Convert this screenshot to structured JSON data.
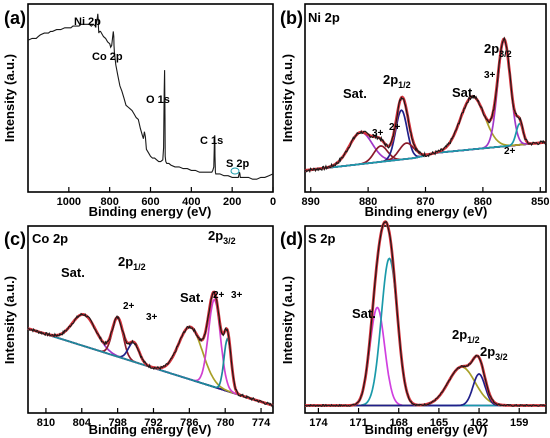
{
  "colors": {
    "data": "#1a1a1a",
    "envelope": "#d2313a",
    "background": "#1f2a8a",
    "sat_purple": "#a038c8",
    "sat_olive": "#a8a028",
    "ni3": "#8a1a2a",
    "ni2": "#20208a",
    "co2": "#d040d0",
    "co3": "#1a8a9a",
    "s_sat": "#d040e0",
    "s_main": "#1a9aaa",
    "s_olive": "#a8a028",
    "s_blue": "#20208a"
  },
  "chart_data": [
    {
      "panel": "(a)",
      "type": "line",
      "title": "",
      "xlabel": "Binding energy (eV)",
      "ylabel": "Intensity (a.u.)",
      "xlim": [
        1200,
        0
      ],
      "xticks": [
        1000,
        800,
        600,
        400,
        200,
        0
      ],
      "ylim": [
        0,
        100
      ],
      "series": [
        {
          "x": [
            1200,
            1180,
            1160,
            1150,
            1140,
            1120,
            1100,
            1090,
            1080,
            1060,
            1040,
            1020,
            1000,
            990,
            980,
            960,
            950,
            940,
            920,
            900,
            890,
            880,
            870,
            865,
            860,
            858,
            856,
            855,
            853,
            850,
            845,
            840,
            830,
            820,
            810,
            800,
            795,
            790,
            785,
            782,
            780,
            779,
            777,
            775,
            770,
            760,
            750,
            740,
            730,
            720,
            710,
            700,
            690,
            680,
            670,
            660,
            650,
            645,
            640,
            635,
            630,
            625,
            620,
            610,
            600,
            590,
            580,
            570,
            560,
            550,
            540,
            536,
            533,
            531,
            529,
            528,
            525,
            520,
            510,
            500,
            480,
            460,
            440,
            420,
            400,
            380,
            360,
            340,
            320,
            300,
            295,
            290,
            287,
            285,
            284,
            282,
            280,
            275,
            270,
            260,
            240,
            220,
            200,
            180,
            170,
            164,
            162,
            160,
            150,
            140,
            120,
            100,
            80,
            60,
            40,
            20,
            0
          ],
          "y": [
            84,
            85,
            85,
            86,
            87,
            88,
            88,
            89,
            89,
            90,
            90,
            91,
            91,
            91,
            92,
            92,
            92,
            93,
            93,
            93,
            92,
            93,
            92,
            94,
            97,
            99,
            96,
            92,
            88,
            89,
            89,
            88,
            86,
            85,
            83,
            82,
            80,
            81,
            86,
            89,
            86,
            81,
            77,
            75,
            70,
            64,
            58,
            55,
            51,
            47,
            46,
            45,
            44,
            42,
            40,
            39,
            34,
            32,
            30,
            28,
            32,
            29,
            22,
            20,
            18,
            17,
            17,
            16,
            15,
            15,
            16,
            23,
            55,
            67,
            40,
            18,
            15,
            14,
            14,
            13,
            12,
            12,
            11,
            11,
            10,
            10,
            9,
            9,
            9,
            9,
            10,
            12,
            26,
            30,
            18,
            9,
            8,
            8,
            8,
            8,
            7,
            7,
            6,
            6,
            6,
            9,
            8,
            6,
            6,
            6,
            6,
            5,
            5,
            6,
            6,
            7,
            8
          ]
        }
      ],
      "annotations": [
        "Ni 2p",
        "Co 2p",
        "O 1s",
        "C 1s",
        "S 2p"
      ]
    },
    {
      "panel": "(b)",
      "type": "line",
      "title": "Ni 2p",
      "xlabel": "Binding energy (eV)",
      "ylabel": "Intensity (a.u.)",
      "xlim": [
        891,
        849
      ],
      "xticks": [
        890,
        880,
        870,
        860,
        850
      ],
      "ylim": [
        0,
        100
      ],
      "baseline": {
        "x": [
          891,
          872,
          868,
          849
        ],
        "y": [
          10,
          17,
          20,
          26
        ]
      },
      "peaks": [
        {
          "name": "Sat.",
          "center": 881.3,
          "height": 18,
          "width": 2.0
        },
        {
          "name": "3+",
          "center": 877.8,
          "height": 9,
          "width": 1.2
        },
        {
          "name": "2+",
          "center": 874.2,
          "height": 28,
          "width": 1.0
        },
        {
          "name": "3+",
          "center": 873.3,
          "height": 9,
          "width": 1.3
        },
        {
          "name": "Sat.",
          "center": 861.8,
          "height": 30,
          "width": 2.1
        },
        {
          "name": "3+",
          "center": 856.3,
          "height": 60,
          "width": 1.1
        },
        {
          "name": "2+",
          "center": 853.6,
          "height": 12,
          "width": 0.6
        }
      ],
      "labels": [
        "2p1/2",
        "2p3/2",
        "Sat.",
        "Sat.",
        "3+",
        "2+",
        "3+",
        "2+"
      ]
    },
    {
      "panel": "(c)",
      "type": "line",
      "title": "Co 2p",
      "xlabel": "Binding energy (eV)",
      "ylabel": "Intensity (a.u.)",
      "xlim": [
        813,
        772
      ],
      "xticks": [
        810,
        804,
        798,
        792,
        786,
        780,
        774
      ],
      "ylim": [
        0,
        100
      ],
      "baseline": {
        "x": [
          813,
          772
        ],
        "y": [
          46,
          2
        ]
      },
      "peaks": [
        {
          "name": "Sat.",
          "center": 803.6,
          "height": 18,
          "width": 2.0
        },
        {
          "name": "2+",
          "center": 798.0,
          "height": 22,
          "width": 0.9
        },
        {
          "name": "3+",
          "center": 795.3,
          "height": 11,
          "width": 0.9
        },
        {
          "name": "Sat.",
          "center": 785.8,
          "height": 30,
          "width": 2.0
        },
        {
          "name": "2+",
          "center": 781.8,
          "height": 50,
          "width": 1.0
        },
        {
          "name": "3+",
          "center": 779.6,
          "height": 30,
          "width": 0.6
        }
      ],
      "labels": [
        "2p1/2",
        "2p3/2",
        "Sat.",
        "Sat.",
        "2+",
        "3+",
        "2+",
        "3+"
      ]
    },
    {
      "panel": "(d)",
      "type": "line",
      "title": "S 2p",
      "xlabel": "Binding energy (eV)",
      "ylabel": "Intensity (a.u.)",
      "xlim": [
        175,
        157
      ],
      "xticks": [
        174,
        171,
        168,
        165,
        162,
        159
      ],
      "ylim": [
        0,
        100
      ],
      "baseline": {
        "x": [
          175,
          157
        ],
        "y": [
          2,
          2
        ]
      },
      "peaks": [
        {
          "name": "Sat.",
          "center": 169.6,
          "height": 56,
          "width": 0.55
        },
        {
          "name": "Sat.",
          "center": 168.7,
          "height": 84,
          "width": 0.6
        },
        {
          "name": "2p1/2",
          "center": 163.3,
          "height": 22,
          "width": 1.0
        },
        {
          "name": "2p3/2",
          "center": 162.0,
          "height": 18,
          "width": 0.45
        }
      ],
      "labels": [
        "Sat.",
        "2p1/2",
        "2p3/2"
      ]
    }
  ]
}
